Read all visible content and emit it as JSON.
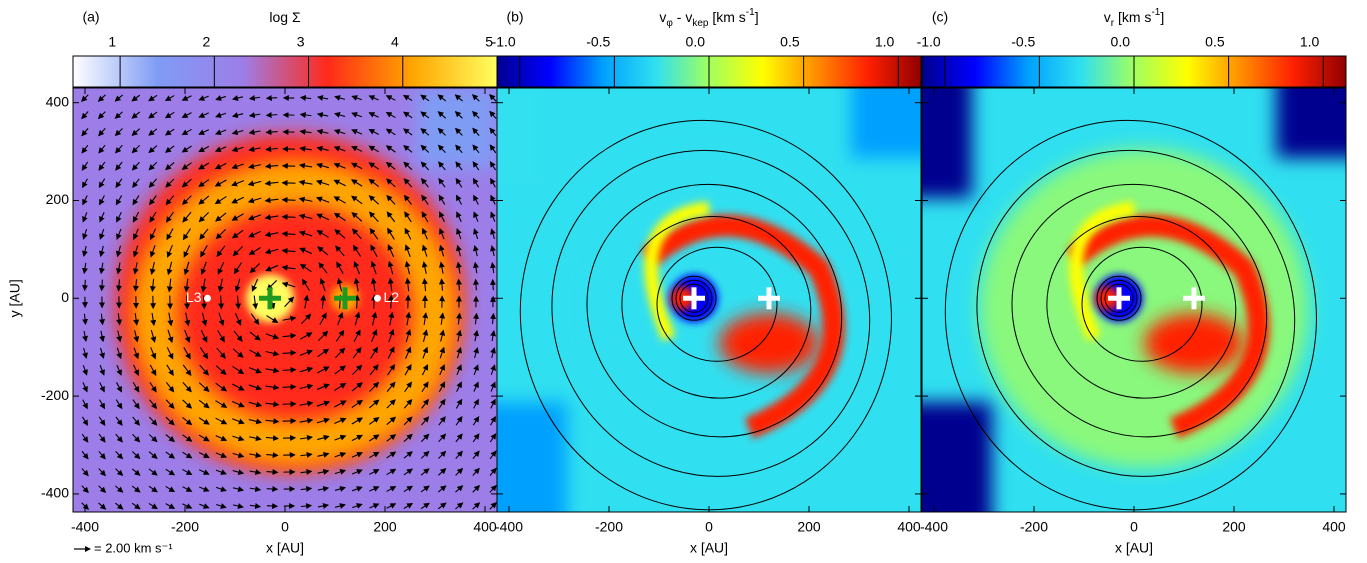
{
  "chart_data": [
    {
      "type": "heatmap",
      "style": "density",
      "label": "(a)",
      "colorbar": {
        "title": [
          {
            "text": "log Σ"
          }
        ],
        "lim": [
          0.5,
          5
        ],
        "ticks": [
          1,
          2,
          3,
          4,
          5
        ],
        "colormap": [
          "#ffffff",
          "#7f9cf5",
          "#9d7ee8",
          "#ff2a1a",
          "#ffa500",
          "#ffff60"
        ]
      },
      "xlabel": "x [AU]",
      "ylabel": "y [AU]",
      "xlim": [
        -424,
        424
      ],
      "ylim": [
        -437,
        430
      ],
      "xticks": [
        -400,
        -200,
        0,
        200,
        400
      ],
      "yticks": [
        -400,
        -200,
        0,
        200,
        400
      ],
      "ytick_labels": true,
      "markers": {
        "x": [
          -30,
          120
        ],
        "y": [
          0,
          0
        ],
        "color": "#1f9a1f"
      },
      "annotations": [
        {
          "text": "L3",
          "x": -155,
          "y": 0
        },
        {
          "text": "L2",
          "x": 185,
          "y": 0
        }
      ],
      "arrow_key": "= 2.00 km s⁻¹"
    },
    {
      "type": "heatmap",
      "style": "velocity",
      "label": "(b)",
      "colorbar": {
        "title": [
          {
            "text": "v"
          },
          {
            "text": "φ",
            "sub": true
          },
          {
            "text": " - v"
          },
          {
            "text": "kep",
            "sub": true
          },
          {
            "text": " [km s"
          },
          {
            "text": "-1",
            "sup": true
          },
          {
            "text": "]"
          }
        ],
        "lim": [
          -1.12,
          1.12
        ],
        "ticks": [
          {
            "value": -1,
            "label": "-1.0"
          },
          -0.5,
          {
            "value": 0,
            "label": "0.0"
          },
          0.5,
          {
            "value": 1,
            "label": "1.0"
          }
        ],
        "colormap": [
          "#00008f",
          "#0000ff",
          "#00a0ff",
          "#30e0f0",
          "#a0ff60",
          "#ffff00",
          "#ff9000",
          "#ff2000",
          "#900000"
        ]
      },
      "xlabel": "x [AU]",
      "xlim": [
        -424,
        424
      ],
      "ylim": [
        -437,
        430
      ],
      "xticks": [
        -400,
        -200,
        0,
        200,
        400
      ],
      "yticks": [
        -400,
        -200,
        0,
        200,
        400
      ],
      "ytick_labels": false,
      "markers": {
        "x": [
          -30,
          120
        ],
        "y": [
          0,
          0
        ],
        "color": "#ffffff"
      }
    },
    {
      "type": "heatmap",
      "style": "velocity",
      "label": "(c)",
      "colorbar": {
        "title": [
          {
            "text": "v"
          },
          {
            "text": "r",
            "sub": true
          },
          {
            "text": " [km s"
          },
          {
            "text": "-1",
            "sup": true
          },
          {
            "text": "]"
          }
        ],
        "lim": [
          -1.12,
          1.12
        ],
        "ticks": [
          {
            "value": -1,
            "label": "-1.0"
          },
          -0.5,
          {
            "value": 0,
            "label": "0.0"
          },
          0.5,
          {
            "value": 1,
            "label": "1.0"
          }
        ],
        "colormap": [
          "#00008f",
          "#0000ff",
          "#00a0ff",
          "#30e0f0",
          "#a0ff60",
          "#ffff00",
          "#ff9000",
          "#ff2000",
          "#900000"
        ]
      },
      "xlabel": "x [AU]",
      "xlim": [
        -424,
        424
      ],
      "ylim": [
        -437,
        430
      ],
      "xticks": [
        -400,
        -200,
        0,
        200,
        400
      ],
      "yticks": [
        -400,
        -200,
        0,
        200,
        400
      ],
      "ytick_labels": false,
      "markers": {
        "x": [
          -30,
          120
        ],
        "y": [
          0,
          0
        ],
        "color": "#ffffff"
      }
    }
  ]
}
